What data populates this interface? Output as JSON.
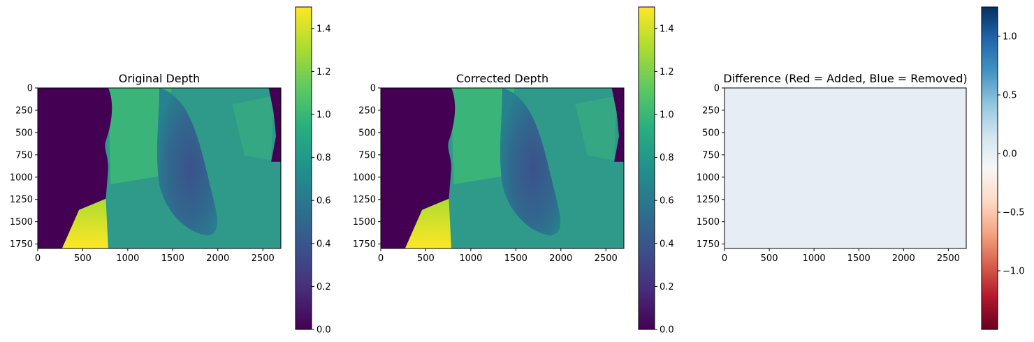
{
  "chart_data": [
    {
      "type": "heatmap",
      "title": "Original Depth",
      "colormap": "viridis",
      "image_extent": {
        "x": [
          0,
          2700
        ],
        "y": [
          1800,
          0
        ]
      },
      "x_ticks": [
        0,
        500,
        1000,
        1500,
        2000,
        2500
      ],
      "x_tick_labels": [
        "0",
        "500",
        "1000",
        "1500",
        "2000",
        "2500"
      ],
      "y_ticks": [
        0,
        250,
        500,
        750,
        1000,
        1250,
        1500,
        1750
      ],
      "y_tick_labels": [
        "0",
        "250",
        "500",
        "750",
        "1000",
        "1250",
        "1500",
        "1750"
      ],
      "colorbar": {
        "range": [
          0,
          1.5
        ],
        "ticks": [
          0,
          0.2,
          0.4,
          0.6,
          0.8,
          1.0,
          1.2,
          1.4
        ],
        "tick_labels": [
          "0.0",
          "0.2",
          "0.4",
          "0.6",
          "0.8",
          "1.0",
          "1.2",
          "1.4"
        ]
      }
    },
    {
      "type": "heatmap",
      "title": "Corrected Depth",
      "colormap": "viridis",
      "image_extent": {
        "x": [
          0,
          2700
        ],
        "y": [
          1800,
          0
        ]
      },
      "x_ticks": [
        0,
        500,
        1000,
        1500,
        2000,
        2500
      ],
      "x_tick_labels": [
        "0",
        "500",
        "1000",
        "1500",
        "2000",
        "2500"
      ],
      "y_ticks": [
        0,
        250,
        500,
        750,
        1000,
        1250,
        1500,
        1750
      ],
      "y_tick_labels": [
        "0",
        "250",
        "500",
        "750",
        "1000",
        "1250",
        "1500",
        "1750"
      ],
      "colorbar": {
        "range": [
          0,
          1.5
        ],
        "ticks": [
          0,
          0.2,
          0.4,
          0.6,
          0.8,
          1.0,
          1.2,
          1.4
        ],
        "tick_labels": [
          "0.0",
          "0.2",
          "0.4",
          "0.6",
          "0.8",
          "1.0",
          "1.2",
          "1.4"
        ]
      }
    },
    {
      "type": "heatmap",
      "title": "Difference (Red = Added, Blue = Removed)",
      "colormap": "RdBu",
      "image_extent": {
        "x": [
          0,
          2700
        ],
        "y": [
          1800,
          0
        ]
      },
      "uniform_value": 0.1,
      "x_ticks": [
        0,
        500,
        1000,
        1500,
        2000,
        2500
      ],
      "x_tick_labels": [
        "0",
        "500",
        "1000",
        "1500",
        "2000",
        "2500"
      ],
      "y_ticks": [
        0,
        250,
        500,
        750,
        1000,
        1250,
        1500,
        1750
      ],
      "y_tick_labels": [
        "0",
        "250",
        "500",
        "750",
        "1000",
        "1250",
        "1500",
        "1750"
      ],
      "colorbar": {
        "range": [
          -1.5,
          1.25
        ],
        "ticks": [
          -1.0,
          -0.5,
          0.0,
          0.5,
          1.0
        ],
        "tick_labels": [
          "−1.0",
          "−0.5",
          "0.0",
          "0.5",
          "1.0"
        ]
      }
    }
  ]
}
